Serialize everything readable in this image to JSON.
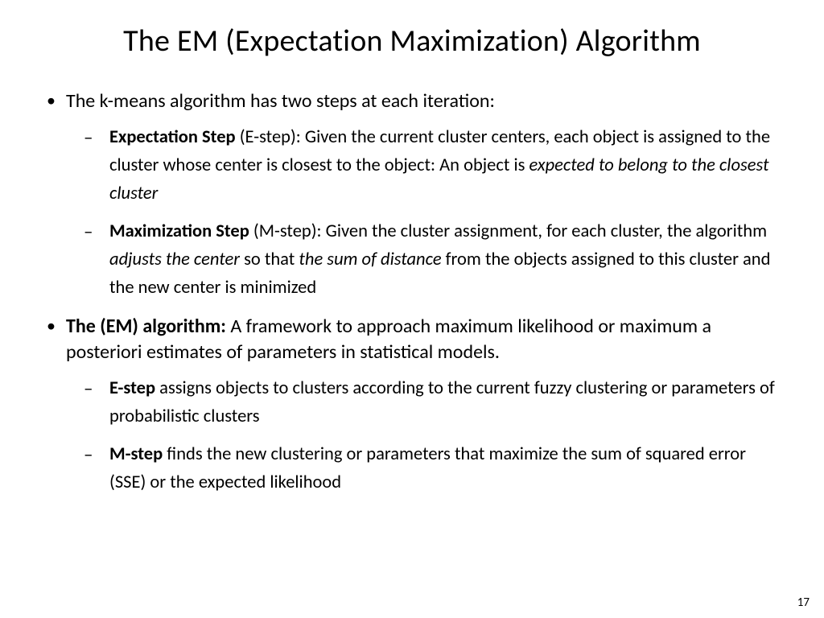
{
  "title": "The EM (Expectation Maximization) Algorithm",
  "b1": {
    "intro": "The k-means algorithm has two steps at each iteration:",
    "sub1": {
      "lead": "Expectation Step",
      "paren": " (E-step): Given the current cluster centers, each object is assigned to the cluster whose center is closest to the object: An object is ",
      "italic": "expected to belong to the closest cluster"
    },
    "sub2": {
      "lead": "Maximization Step",
      "p1": " (M-step): Given the cluster assignment, for each cluster, the algorithm ",
      "i1": "adjusts the center",
      "p2": " so that ",
      "i2": "the sum of distance",
      "p3": " from the objects assigned to this cluster and the new center is minimized"
    }
  },
  "b2": {
    "lead": "The (EM) algorithm:",
    "rest": " A framework to approach maximum likelihood or maximum a posteriori estimates of parameters in statistical models.",
    "sub1": {
      "lead": "E-step",
      "rest": " assigns objects to clusters according to the current fuzzy clustering or parameters of probabilistic clusters"
    },
    "sub2": {
      "lead": "M-step",
      "rest": " finds the new clustering or parameters that maximize the sum of squared error (SSE) or the expected likelihood"
    }
  },
  "page": "17",
  "colors": {
    "bg": "#ffffff",
    "text": "#000000"
  }
}
